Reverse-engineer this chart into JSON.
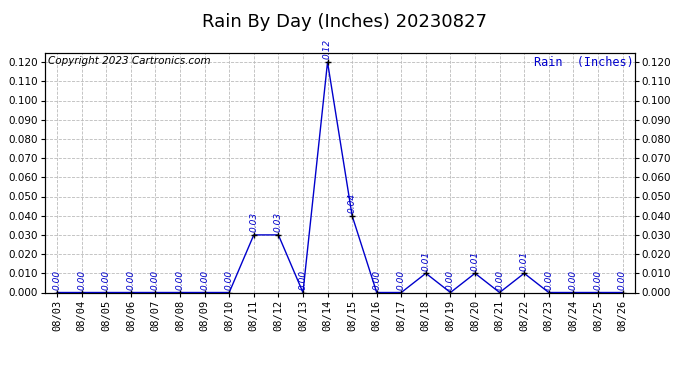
{
  "title": "Rain By Day (Inches) 20230827",
  "copyright_text": "Copyright 2023 Cartronics.com",
  "legend_label": "Rain  (Inches)",
  "dates": [
    "08/03",
    "08/04",
    "08/05",
    "08/06",
    "08/07",
    "08/08",
    "08/09",
    "08/10",
    "08/11",
    "08/12",
    "08/13",
    "08/14",
    "08/15",
    "08/16",
    "08/17",
    "08/18",
    "08/19",
    "08/20",
    "08/21",
    "08/22",
    "08/23",
    "08/24",
    "08/25",
    "08/26"
  ],
  "values": [
    0.0,
    0.0,
    0.0,
    0.0,
    0.0,
    0.0,
    0.0,
    0.0,
    0.03,
    0.03,
    0.0,
    0.12,
    0.04,
    0.0,
    0.0,
    0.01,
    0.0,
    0.01,
    0.0,
    0.01,
    0.0,
    0.0,
    0.0,
    0.0
  ],
  "ylim": [
    0.0,
    0.125
  ],
  "yticks": [
    0.0,
    0.01,
    0.02,
    0.03,
    0.04,
    0.05,
    0.06,
    0.07,
    0.08,
    0.09,
    0.1,
    0.11,
    0.12
  ],
  "line_color": "#0000cc",
  "marker_color": "#000000",
  "grid_color": "#bbbbbb",
  "bg_color": "#ffffff",
  "title_fontsize": 13,
  "label_fontsize": 7.5,
  "annotation_fontsize": 6.5,
  "copyright_fontsize": 7.5,
  "legend_fontsize": 8.5
}
